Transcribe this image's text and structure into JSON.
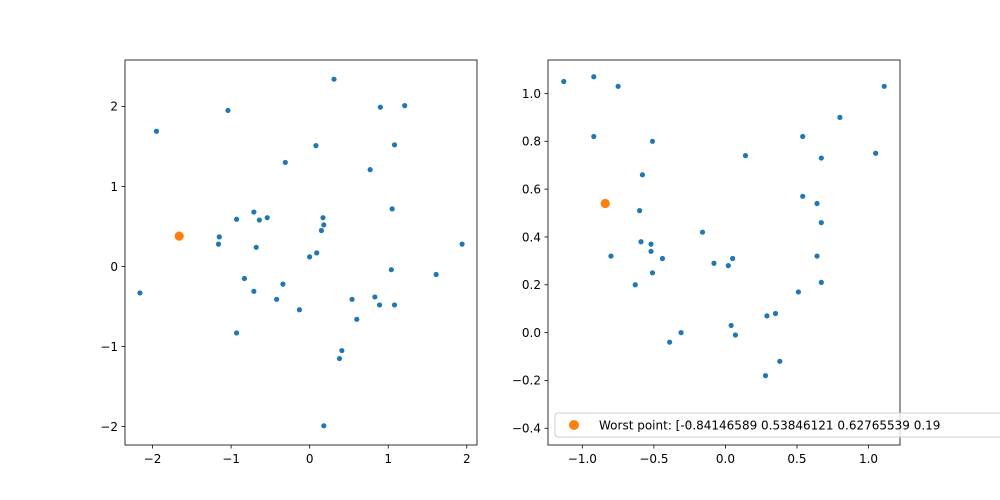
{
  "chart_data": [
    {
      "type": "scatter",
      "xlim": [
        -2.35,
        2.13
      ],
      "ylim": [
        -2.23,
        2.58
      ],
      "xticks": [
        {
          "value": -2,
          "label": "−2"
        },
        {
          "value": -1,
          "label": "−1"
        },
        {
          "value": 0,
          "label": "0"
        },
        {
          "value": 1,
          "label": "1"
        },
        {
          "value": 2,
          "label": "2"
        }
      ],
      "yticks": [
        {
          "value": -2,
          "label": "−2"
        },
        {
          "value": -1,
          "label": "−1"
        },
        {
          "value": 0,
          "label": "0"
        },
        {
          "value": 1,
          "label": "1"
        },
        {
          "value": 2,
          "label": "2"
        }
      ],
      "grid": false,
      "series": [
        {
          "color": "#1f77b4",
          "marker_size": "small",
          "points": [
            [
              -1.95,
              1.69
            ],
            [
              -1.04,
              1.95
            ],
            [
              0.31,
              2.34
            ],
            [
              0.9,
              1.99
            ],
            [
              1.21,
              2.01
            ],
            [
              -0.31,
              1.3
            ],
            [
              0.08,
              1.51
            ],
            [
              1.08,
              1.52
            ],
            [
              0.77,
              1.21
            ],
            [
              1.05,
              0.72
            ],
            [
              -0.93,
              0.59
            ],
            [
              -0.71,
              0.68
            ],
            [
              -0.64,
              0.58
            ],
            [
              -0.54,
              0.61
            ],
            [
              0.17,
              0.61
            ],
            [
              0.18,
              0.52
            ],
            [
              0.15,
              0.45
            ],
            [
              -1.15,
              0.37
            ],
            [
              -1.16,
              0.28
            ],
            [
              -0.68,
              0.24
            ],
            [
              0.09,
              0.17
            ],
            [
              0.0,
              0.12
            ],
            [
              1.04,
              -0.04
            ],
            [
              1.61,
              -0.1
            ],
            [
              1.94,
              0.28
            ],
            [
              -2.16,
              -0.33
            ],
            [
              -0.83,
              -0.15
            ],
            [
              -0.34,
              -0.22
            ],
            [
              -0.71,
              -0.31
            ],
            [
              -0.42,
              -0.41
            ],
            [
              0.54,
              -0.41
            ],
            [
              0.83,
              -0.38
            ],
            [
              0.89,
              -0.48
            ],
            [
              1.08,
              -0.48
            ],
            [
              -0.13,
              -0.54
            ],
            [
              0.6,
              -0.66
            ],
            [
              -0.93,
              -0.83
            ],
            [
              0.41,
              -1.05
            ],
            [
              0.38,
              -1.15
            ],
            [
              0.18,
              -1.99
            ]
          ]
        },
        {
          "color": "#ff7f0e",
          "marker_size": "large",
          "points": [
            [
              -1.66,
              0.38
            ]
          ]
        }
      ]
    },
    {
      "type": "scatter",
      "xlim": [
        -1.24,
        1.22
      ],
      "ylim": [
        -0.47,
        1.14
      ],
      "xticks": [
        {
          "value": -1.0,
          "label": "−1.0"
        },
        {
          "value": -0.5,
          "label": "−0.5"
        },
        {
          "value": 0.0,
          "label": "0.0"
        },
        {
          "value": 0.5,
          "label": "0.5"
        },
        {
          "value": 1.0,
          "label": "1.0"
        }
      ],
      "yticks": [
        {
          "value": -0.4,
          "label": "−0.4"
        },
        {
          "value": -0.2,
          "label": "−0.2"
        },
        {
          "value": 0.0,
          "label": "0.0"
        },
        {
          "value": 0.2,
          "label": "0.2"
        },
        {
          "value": 0.4,
          "label": "0.4"
        },
        {
          "value": 0.6,
          "label": "0.6"
        },
        {
          "value": 0.8,
          "label": "0.8"
        },
        {
          "value": 1.0,
          "label": "1.0"
        }
      ],
      "grid": false,
      "legend": {
        "placement": "lower-right",
        "entries": [
          "Worst point: [-0.84146589  0.53846121  0.62765539  0.19"
        ]
      },
      "series": [
        {
          "color": "#1f77b4",
          "marker_size": "small",
          "points": [
            [
              -1.13,
              1.05
            ],
            [
              -0.92,
              1.07
            ],
            [
              -0.75,
              1.03
            ],
            [
              -0.92,
              0.82
            ],
            [
              -0.51,
              0.8
            ],
            [
              0.54,
              0.82
            ],
            [
              0.8,
              0.9
            ],
            [
              1.11,
              1.03
            ],
            [
              1.05,
              0.75
            ],
            [
              0.14,
              0.74
            ],
            [
              0.67,
              0.73
            ],
            [
              -0.58,
              0.66
            ],
            [
              0.54,
              0.57
            ],
            [
              0.64,
              0.54
            ],
            [
              -0.6,
              0.51
            ],
            [
              0.67,
              0.46
            ],
            [
              -0.16,
              0.42
            ],
            [
              -0.59,
              0.38
            ],
            [
              -0.52,
              0.37
            ],
            [
              -0.52,
              0.34
            ],
            [
              -0.8,
              0.32
            ],
            [
              -0.44,
              0.31
            ],
            [
              0.05,
              0.31
            ],
            [
              -0.08,
              0.29
            ],
            [
              0.02,
              0.28
            ],
            [
              0.64,
              0.32
            ],
            [
              -0.51,
              0.25
            ],
            [
              0.67,
              0.21
            ],
            [
              -0.63,
              0.2
            ],
            [
              0.51,
              0.17
            ],
            [
              0.35,
              0.08
            ],
            [
              0.29,
              0.07
            ],
            [
              0.04,
              0.03
            ],
            [
              -0.31,
              0.0
            ],
            [
              0.07,
              -0.01
            ],
            [
              -0.39,
              -0.04
            ],
            [
              0.38,
              -0.12
            ],
            [
              0.28,
              -0.18
            ],
            [
              -0.26,
              -0.38
            ]
          ]
        },
        {
          "color": "#ff7f0e",
          "marker_size": "large",
          "points": [
            [
              -0.84,
              0.54
            ]
          ]
        }
      ]
    }
  ]
}
